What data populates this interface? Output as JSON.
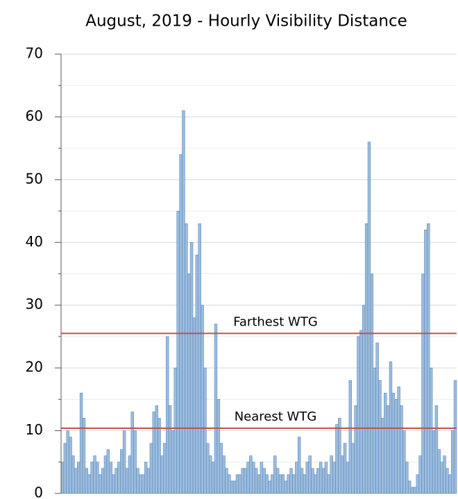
{
  "chart_data": {
    "type": "bar",
    "title": "August, 2019 - Hourly Visibility Distance",
    "values": [
      5,
      8,
      10,
      9,
      6,
      4,
      5,
      16,
      12,
      4,
      3,
      5,
      6,
      5,
      3,
      4,
      6,
      7,
      5,
      3,
      4,
      5,
      7,
      10,
      4,
      6,
      13,
      10,
      4,
      3,
      3,
      5,
      4,
      8,
      13,
      14,
      12,
      6,
      8,
      25,
      14,
      10,
      20,
      45,
      54,
      61,
      43,
      35,
      40,
      28,
      38,
      43,
      30,
      20,
      8,
      6,
      5,
      27,
      15,
      8,
      6,
      4,
      3,
      2,
      2,
      3,
      3,
      4,
      4,
      5,
      6,
      5,
      4,
      3,
      5,
      4,
      3,
      2,
      3,
      6,
      4,
      3,
      3,
      2,
      3,
      4,
      3,
      5,
      9,
      4,
      3,
      5,
      6,
      4,
      3,
      4,
      5,
      4,
      5,
      3,
      6,
      5,
      11,
      12,
      6,
      8,
      5,
      18,
      8,
      14,
      25,
      26,
      30,
      43,
      56,
      35,
      20,
      24,
      18,
      12,
      16,
      14,
      21,
      16,
      15,
      17,
      14,
      10,
      5,
      2,
      1,
      1,
      3,
      6,
      35,
      42,
      43,
      20,
      10,
      14,
      7,
      5,
      6,
      4,
      3,
      10,
      18
    ],
    "color": "#9dbcdd",
    "edge_color": "#4a7fb5",
    "ylim": [
      0,
      70
    ],
    "yticks": [
      0,
      10,
      20,
      30,
      40,
      50,
      60,
      70
    ],
    "yminor_ticks": [
      5,
      15,
      25,
      35,
      45,
      55,
      65
    ],
    "grid": true,
    "reference_lines": [
      {
        "label": "Farthest WTG",
        "value": 25.5,
        "color": "#c0504d"
      },
      {
        "label": "Nearest WTG",
        "value": 10.4,
        "color": "#c0504d"
      }
    ]
  }
}
